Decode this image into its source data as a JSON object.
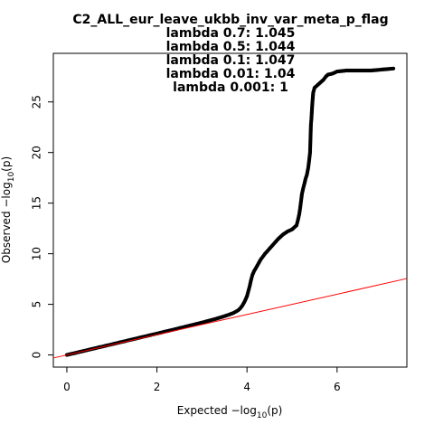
{
  "chart_data": {
    "type": "scatter",
    "title_lines": [
      "C2_ALL_eur_leave_ukbb_inv_var_meta_p_flag",
      "lambda 0.7: 1.045",
      "lambda 0.5: 1.044",
      "lambda 0.1: 1.047",
      "lambda 0.01: 1.04",
      "lambda 0.001: 1"
    ],
    "xlabel": {
      "prefix": "Expected  −log",
      "sub": "10",
      "suffix": "(p)"
    },
    "ylabel": {
      "prefix": "Observed  −log",
      "sub": "10",
      "suffix": "(p)"
    },
    "xlim": [
      -0.3,
      7.55
    ],
    "ylim": [
      -1.2,
      29.8
    ],
    "xticks": [
      0,
      2,
      4,
      6
    ],
    "yticks": [
      0,
      5,
      10,
      15,
      20,
      25
    ],
    "reference_line": {
      "slope": 1,
      "intercept": 0,
      "color": "#ff0000"
    },
    "point_color": "#000000",
    "series": [
      {
        "points": [
          [
            0.0,
            0.0
          ],
          [
            0.1,
            0.11
          ],
          [
            0.2,
            0.21
          ],
          [
            0.3,
            0.32
          ],
          [
            0.4,
            0.42
          ],
          [
            0.5,
            0.53
          ],
          [
            0.6,
            0.63
          ],
          [
            0.7,
            0.74
          ],
          [
            0.8,
            0.84
          ],
          [
            0.9,
            0.95
          ],
          [
            1.0,
            1.05
          ],
          [
            1.1,
            1.16
          ],
          [
            1.2,
            1.27
          ],
          [
            1.3,
            1.37
          ],
          [
            1.4,
            1.48
          ],
          [
            1.5,
            1.58
          ],
          [
            1.6,
            1.69
          ],
          [
            1.7,
            1.8
          ],
          [
            1.8,
            1.9
          ],
          [
            1.9,
            2.01
          ],
          [
            2.0,
            2.11
          ],
          [
            2.1,
            2.22
          ],
          [
            2.2,
            2.33
          ],
          [
            2.3,
            2.43
          ],
          [
            2.4,
            2.54
          ],
          [
            2.5,
            2.65
          ],
          [
            2.6,
            2.76
          ],
          [
            2.7,
            2.87
          ],
          [
            2.8,
            2.98
          ],
          [
            2.9,
            3.09
          ],
          [
            3.0,
            3.2
          ],
          [
            3.1,
            3.32
          ],
          [
            3.2,
            3.44
          ],
          [
            3.3,
            3.56
          ],
          [
            3.4,
            3.69
          ],
          [
            3.5,
            3.83
          ],
          [
            3.6,
            3.98
          ],
          [
            3.7,
            4.15
          ],
          [
            3.8,
            4.4
          ],
          [
            3.85,
            4.6
          ],
          [
            3.9,
            4.9
          ],
          [
            3.95,
            5.3
          ],
          [
            4.0,
            5.8
          ],
          [
            4.03,
            6.3
          ],
          [
            4.06,
            6.8
          ],
          [
            4.09,
            7.4
          ],
          [
            4.12,
            7.9
          ],
          [
            4.16,
            8.3
          ],
          [
            4.2,
            8.6
          ],
          [
            4.25,
            9.0
          ],
          [
            4.3,
            9.4
          ],
          [
            4.35,
            9.7
          ],
          [
            4.4,
            10.0
          ],
          [
            4.5,
            10.5
          ],
          [
            4.6,
            11.0
          ],
          [
            4.7,
            11.5
          ],
          [
            4.8,
            11.9
          ],
          [
            4.9,
            12.2
          ],
          [
            5.0,
            12.4
          ],
          [
            5.05,
            12.6
          ],
          [
            5.1,
            12.8
          ],
          [
            5.13,
            13.3
          ],
          [
            5.16,
            13.9
          ],
          [
            5.18,
            14.5
          ],
          [
            5.2,
            15.2
          ],
          [
            5.22,
            15.9
          ],
          [
            5.25,
            16.5
          ],
          [
            5.28,
            17.0
          ],
          [
            5.3,
            17.4
          ],
          [
            5.33,
            17.8
          ],
          [
            5.36,
            18.5
          ],
          [
            5.38,
            19.2
          ],
          [
            5.4,
            20.0
          ],
          [
            5.42,
            22.8
          ],
          [
            5.43,
            23.3
          ],
          [
            5.45,
            24.8
          ],
          [
            5.47,
            25.9
          ],
          [
            5.5,
            26.4
          ],
          [
            5.55,
            26.6
          ],
          [
            5.6,
            26.8
          ],
          [
            5.65,
            27.0
          ],
          [
            5.7,
            27.2
          ],
          [
            5.75,
            27.5
          ],
          [
            5.8,
            27.7
          ],
          [
            5.9,
            27.8
          ],
          [
            6.0,
            28.0
          ],
          [
            6.1,
            28.05
          ],
          [
            6.2,
            28.1
          ],
          [
            6.3,
            28.1
          ],
          [
            6.5,
            28.1
          ],
          [
            6.75,
            28.1
          ],
          [
            7.25,
            28.3
          ]
        ]
      }
    ]
  }
}
